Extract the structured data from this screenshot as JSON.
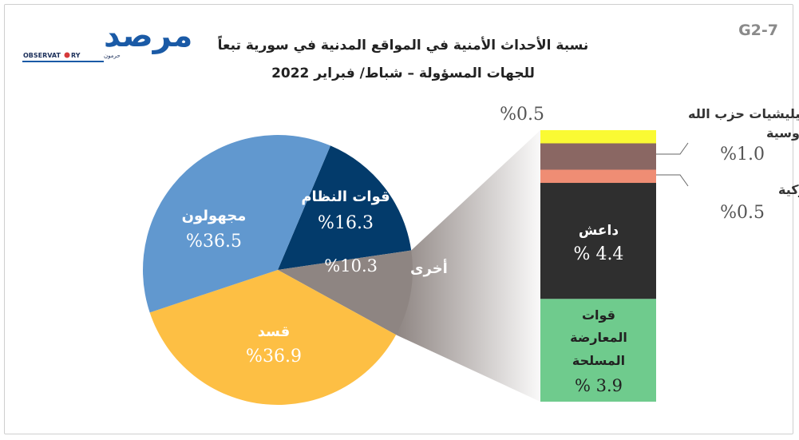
{
  "logo": {
    "name": "مرصد",
    "sub_left": "OBSERVAT",
    "sub_right": "RY",
    "sub_ar": "حرمون"
  },
  "figure_code": "G2-7",
  "chart_data": {
    "type": "pie",
    "title_line1": "نسبة الأحداث الأمنية في المواقع المدنية في سورية تبعاً",
    "title_line2": "للجهات المسؤولة – شباط/ فبراير 2022",
    "slices": [
      {
        "label": "قوات النظام",
        "value": 16.3,
        "value_text": "%16.3",
        "color": "#033b6b"
      },
      {
        "label": "أخرى",
        "value": 10.3,
        "value_text": "%10.3",
        "color": "#8e8582"
      },
      {
        "label": "قسد",
        "value": 36.9,
        "value_text": "%36.9",
        "color": "#fdbf44"
      },
      {
        "label": "مجهولون",
        "value": 36.5,
        "value_text": "%36.5",
        "color": "#6198cf"
      }
    ],
    "breakdown_of": "أخرى",
    "breakdown": [
      {
        "label": "قوات المعارضة المسلحة",
        "label_lines": [
          "قوات",
          "المعارضة",
          "المسلحة"
        ],
        "value": 3.9,
        "value_text": "% 3.9",
        "color": "#6fcb8d"
      },
      {
        "label": "داعش",
        "label_lines": [
          "داعش"
        ],
        "value": 4.4,
        "value_text": "% 4.4",
        "color": "#2f2f2f"
      },
      {
        "label": "قوات تركية",
        "label_lines": [
          "قوات تركية"
        ],
        "value": 0.5,
        "value_text": "%0.5",
        "color": "#ef8d74"
      },
      {
        "label": "قوات روسية",
        "label_lines": [
          "قوات روسية"
        ],
        "value": 1.0,
        "value_text": "%1.0",
        "color": "#8a6763"
      },
      {
        "label": "ميليشيات حزب الله",
        "label_lines": [
          "ميليشيات حزب الله"
        ],
        "value": 0.5,
        "value_text": "%0.5",
        "color": "#fafa33"
      }
    ]
  }
}
